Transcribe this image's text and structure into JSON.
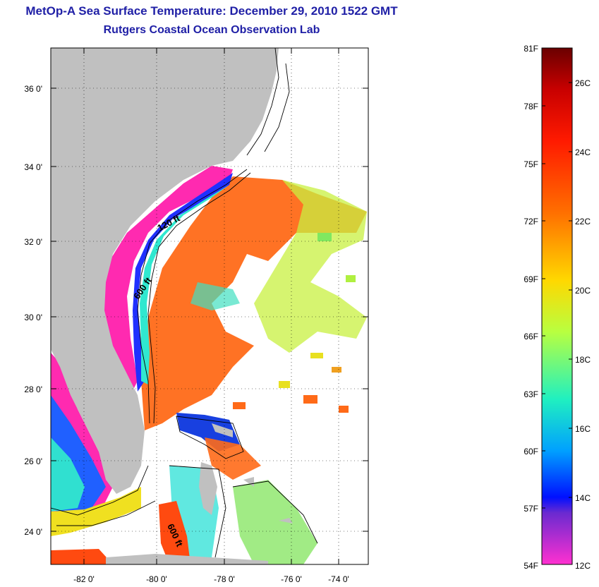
{
  "title": "MetOp-A Sea Surface Temperature:  December 29, 2010 1522 GMT",
  "subtitle": "Rutgers Coastal Ocean Observation Lab",
  "lat_ticks": [
    "36 0'",
    "34 0'",
    "32 0'",
    "30 0'",
    "28 0'",
    "26 0'",
    "24 0'"
  ],
  "lon_ticks": [
    "-82 0'",
    "-80 0'",
    "-78 0'",
    "-76 0'",
    "-74 0'"
  ],
  "contours": [
    "120 ft",
    "600 ft",
    "600 ft"
  ],
  "colorbar": {
    "f_labels": [
      "81F",
      "78F",
      "75F",
      "72F",
      "69F",
      "66F",
      "63F",
      "60F",
      "57F",
      "54F"
    ],
    "c_labels": [
      "26C",
      "24C",
      "22C",
      "20C",
      "18C",
      "16C",
      "14C",
      "12C"
    ]
  },
  "colors": {
    "land": "#c0c0c0",
    "title": "#1f1fa6",
    "warm": "#ff5a10",
    "cold": "#ff1ea0"
  }
}
